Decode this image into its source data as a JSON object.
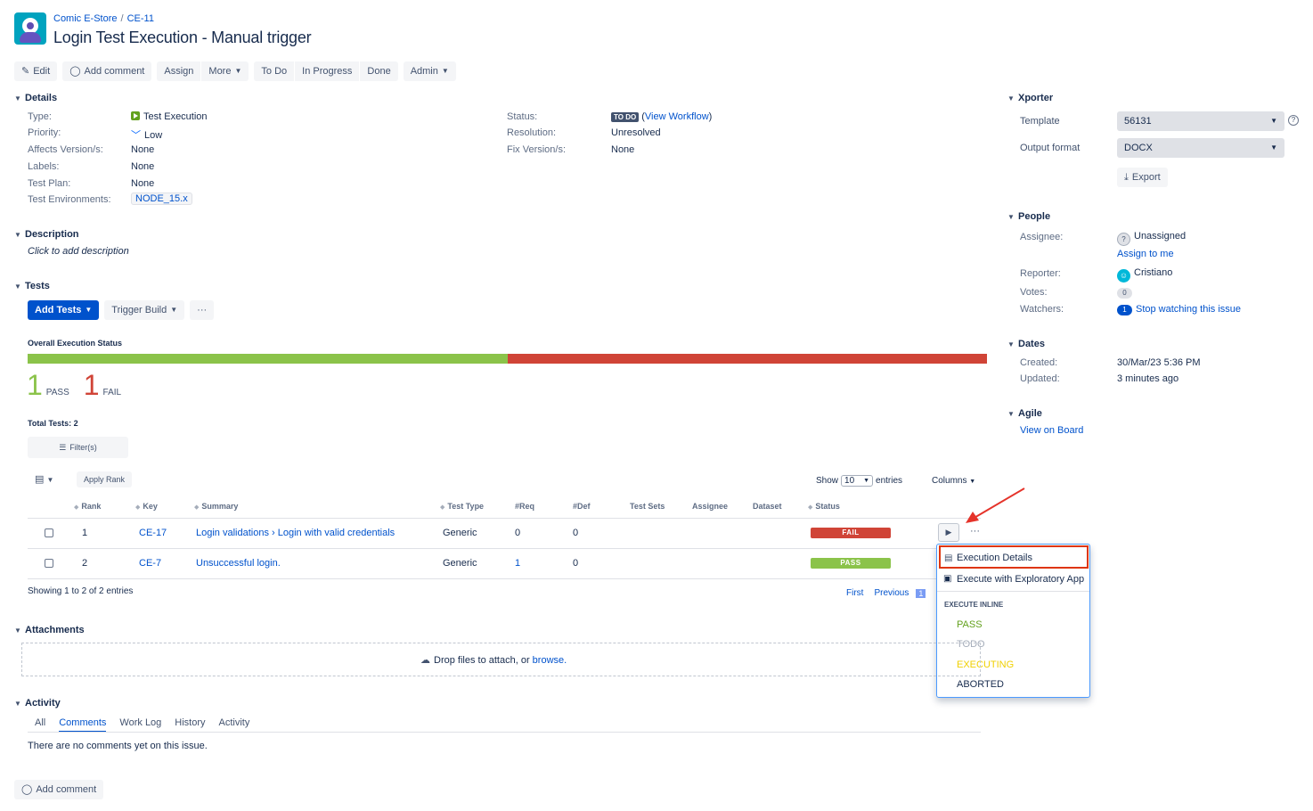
{
  "breadcrumb": {
    "project": "Comic E-Store",
    "issue_key": "CE-11"
  },
  "title": "Login Test Execution - Manual trigger",
  "toolbar": {
    "edit": "Edit",
    "add_comment": "Add comment",
    "assign": "Assign",
    "more": "More",
    "to_do": "To Do",
    "in_progress": "In Progress",
    "done": "Done",
    "admin": "Admin"
  },
  "details": {
    "heading": "Details",
    "type_label": "Type:",
    "type_value": "Test Execution",
    "priority_label": "Priority:",
    "priority_value": "Low",
    "affects_label": "Affects Version/s:",
    "affects_value": "None",
    "labels_label": "Labels:",
    "labels_value": "None",
    "test_plan_label": "Test Plan:",
    "test_plan_value": "None",
    "test_env_label": "Test Environments:",
    "test_env_value": "NODE_15.x",
    "status_label": "Status:",
    "status_value": "TO DO",
    "view_workflow": "View Workflow",
    "resolution_label": "Resolution:",
    "resolution_value": "Unresolved",
    "fix_label": "Fix Version/s:",
    "fix_value": "None"
  },
  "description": {
    "heading": "Description",
    "placeholder": "Click to add description"
  },
  "tests": {
    "heading": "Tests",
    "add_tests": "Add Tests",
    "trigger_build": "Trigger Build",
    "more": "···",
    "overall_label": "Overall Execution Status",
    "pass_count": "1",
    "pass_label": "PASS",
    "fail_count": "1",
    "fail_label": "FAIL",
    "pass_fraction": 0.5,
    "total_tests": "Total Tests: 2",
    "filters": "Filter(s)",
    "apply_rank": "Apply Rank",
    "show": "Show",
    "entries_value": "10",
    "entries": "entries",
    "columns": "Columns",
    "columns_header": [
      "Rank",
      "Key",
      "Summary",
      "Test Type",
      "#Req",
      "#Def",
      "Test Sets",
      "Assignee",
      "Dataset",
      "Status"
    ],
    "rows": [
      {
        "rank": "1",
        "key": "CE-17",
        "summary": "Login validations › Login with valid credentials",
        "type": "Generic",
        "req": "0",
        "def": "0",
        "status": "FAIL"
      },
      {
        "rank": "2",
        "key": "CE-7",
        "summary": "Unsuccessful login.",
        "type": "Generic",
        "req": "1",
        "def": "0",
        "status": "PASS"
      }
    ],
    "showing": "Showing 1 to 2 of 2 entries",
    "first": "First",
    "previous": "Previous",
    "page": "1"
  },
  "menu": {
    "execution_details": "Execution Details",
    "exploratory": "Execute with Exploratory App",
    "inline_heading": "EXECUTE INLINE",
    "pass": "PASS",
    "todo": "TODO",
    "executing": "EXECUTING",
    "aborted": "ABORTED"
  },
  "attachments": {
    "heading": "Attachments",
    "drop_text": "Drop files to attach, or",
    "browse": "browse."
  },
  "activity": {
    "heading": "Activity",
    "tabs": [
      "All",
      "Comments",
      "Work Log",
      "History",
      "Activity"
    ],
    "active_tab": "Comments",
    "empty": "There are no comments yet on this issue.",
    "add_comment": "Add comment"
  },
  "xporter": {
    "heading": "Xporter",
    "template_label": "Template",
    "template_value": "56131",
    "output_label": "Output format",
    "output_value": "DOCX",
    "export": "Export"
  },
  "people": {
    "heading": "People",
    "assignee_label": "Assignee:",
    "assignee_value": "Unassigned",
    "assign_to_me": "Assign to me",
    "reporter_label": "Reporter:",
    "reporter_value": "Cristiano",
    "votes_label": "Votes:",
    "votes_value": "0",
    "watchers_label": "Watchers:",
    "watchers_count": "1",
    "watchers_value": "Stop watching this issue"
  },
  "dates": {
    "heading": "Dates",
    "created_label": "Created:",
    "created_value": "30/Mar/23 5:36 PM",
    "updated_label": "Updated:",
    "updated_value": "3 minutes ago"
  },
  "agile": {
    "heading": "Agile",
    "view_on_board": "View on Board"
  },
  "colors": {
    "pass": "#8bc34a",
    "fail": "#d04437",
    "primary": "#0052cc",
    "executing": "#f0d000"
  }
}
